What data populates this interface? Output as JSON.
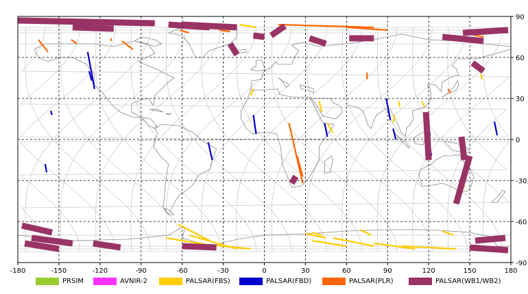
{
  "chart_data": {
    "type": "map",
    "title": "",
    "xlim": [
      -180,
      180
    ],
    "ylim": [
      -90,
      90
    ],
    "x_ticks": [
      -180,
      -150,
      -120,
      -90,
      -60,
      -30,
      0,
      30,
      60,
      90,
      120,
      150,
      180
    ],
    "y_ticks": [
      90,
      60,
      30,
      0,
      -30,
      -60,
      -90
    ],
    "x_tick_labels": [
      "-180",
      "-150",
      "-120",
      "-90",
      "-60",
      "-30",
      "0",
      "30",
      "60",
      "90",
      "120",
      "150",
      "180"
    ],
    "y_tick_labels": [
      "90",
      "60",
      "30",
      "0",
      "-30",
      "-60",
      "-90"
    ],
    "grid": true,
    "legend_placement": "bottom",
    "series": [
      {
        "name": "PRSIM",
        "color": "#99cc33",
        "segments": []
      },
      {
        "name": "AVNIR-2",
        "color": "#ff33ff",
        "segments": []
      },
      {
        "name": "PALSAR(FBS)",
        "color": "#ffcc00",
        "segments": [
          [
            [
              -60,
              84
            ],
            [
              -48,
              82
            ]
          ],
          [
            [
              -18,
              84
            ],
            [
              -6,
              82
            ]
          ],
          [
            [
              -10,
              32
            ],
            [
              -8,
              37
            ]
          ],
          [
            [
              40,
              28
            ],
            [
              42,
              20
            ]
          ],
          [
            [
              46,
              12
            ],
            [
              50,
              5
            ]
          ],
          [
            [
              98,
              28
            ],
            [
              99,
              24
            ]
          ],
          [
            [
              95,
              18
            ],
            [
              94,
              12
            ]
          ],
          [
            [
              115,
              28
            ],
            [
              117,
              24
            ]
          ],
          [
            [
              145,
              -31
            ],
            [
              146,
              -35
            ]
          ],
          [
            [
              158,
              48
            ],
            [
              159,
              44
            ]
          ],
          [
            [
              -63,
              -62
            ],
            [
              -40,
              -74
            ]
          ],
          [
            [
              -72,
              -72
            ],
            [
              -35,
              -78
            ]
          ],
          [
            [
              -55,
              -70
            ],
            [
              -20,
              -80
            ]
          ],
          [
            [
              -40,
              -77
            ],
            [
              -10,
              -80
            ]
          ],
          [
            [
              30,
              -69
            ],
            [
              45,
              -72
            ]
          ],
          [
            [
              35,
              -74
            ],
            [
              60,
              -78
            ]
          ],
          [
            [
              50,
              -72
            ],
            [
              80,
              -78
            ]
          ],
          [
            [
              70,
              -66
            ],
            [
              78,
              -70
            ]
          ],
          [
            [
              80,
              -76
            ],
            [
              110,
              -80
            ]
          ],
          [
            [
              100,
              -78
            ],
            [
              140,
              -80
            ]
          ],
          [
            [
              130,
              -67
            ],
            [
              138,
              -70
            ]
          ],
          [
            [
              35,
              -68
            ],
            [
              42,
              -70
            ]
          ]
        ]
      },
      {
        "name": "PALSAR(FBD)",
        "color": "#0000cc",
        "segments": [
          [
            [
              -129,
              64
            ],
            [
              -124,
              37
            ]
          ],
          [
            [
              -128,
              50
            ],
            [
              -126,
              43
            ]
          ],
          [
            [
              -156,
              21
            ],
            [
              -155,
              18
            ]
          ],
          [
            [
              -160,
              -18
            ],
            [
              -159,
              -24
            ]
          ],
          [
            [
              -8,
              18
            ],
            [
              -6,
              4
            ]
          ],
          [
            [
              -41,
              -2
            ],
            [
              -38,
              -15
            ]
          ],
          [
            [
              44,
              12
            ],
            [
              46,
              2
            ]
          ],
          [
            [
              89,
              30
            ],
            [
              92,
              14
            ]
          ],
          [
            [
              94,
              8
            ],
            [
              96,
              0
            ]
          ],
          [
            [
              117,
              16
            ],
            [
              122,
              -12
            ]
          ],
          [
            [
              120,
              10
            ],
            [
              121,
              3
            ]
          ],
          [
            [
              168,
              13
            ],
            [
              170,
              3
            ]
          ]
        ]
      },
      {
        "name": "PALSAR(PLR)",
        "color": "#ff6600",
        "segments": [
          [
            [
              -165,
              73
            ],
            [
              -158,
              64
            ]
          ],
          [
            [
              -141,
              73
            ],
            [
              -137,
              70
            ]
          ],
          [
            [
              -112,
              74
            ],
            [
              -112,
              72
            ]
          ],
          [
            [
              -104,
              72
            ],
            [
              -96,
              66
            ]
          ],
          [
            [
              -62,
              80
            ],
            [
              -55,
              78
            ]
          ],
          [
            [
              10,
              84
            ],
            [
              80,
              82
            ]
          ],
          [
            [
              60,
              82
            ],
            [
              90,
              80
            ]
          ],
          [
            [
              -33,
              80
            ],
            [
              -25,
              79
            ]
          ],
          [
            [
              18,
              12
            ],
            [
              28,
              -32
            ]
          ],
          [
            [
              24,
              -12
            ],
            [
              28,
              -27
            ]
          ],
          [
            [
              75,
              49
            ],
            [
              75,
              44
            ]
          ],
          [
            [
              134,
              37
            ],
            [
              136,
              34
            ]
          ],
          [
            [
              150,
              77
            ],
            [
              160,
              75
            ]
          ]
        ]
      },
      {
        "name": "PALSAR(WB1/WB2)",
        "color": "#993366",
        "segments": [
          [
            [
              -180,
              87
            ],
            [
              -80,
              85
            ]
          ],
          [
            [
              -140,
              82
            ],
            [
              -110,
              81
            ]
          ],
          [
            [
              -70,
              84
            ],
            [
              -40,
              82
            ]
          ],
          [
            [
              -60,
              84
            ],
            [
              -20,
              82
            ]
          ],
          [
            [
              -25,
              70
            ],
            [
              -20,
              62
            ]
          ],
          [
            [
              15,
              83
            ],
            [
              5,
              76
            ]
          ],
          [
            [
              -8,
              76
            ],
            [
              0,
              75
            ]
          ],
          [
            [
              33,
              74
            ],
            [
              45,
              70
            ]
          ],
          [
            [
              62,
              74
            ],
            [
              80,
              74
            ]
          ],
          [
            [
              130,
              75
            ],
            [
              160,
              72
            ]
          ],
          [
            [
              145,
              78
            ],
            [
              178,
              80
            ]
          ],
          [
            [
              152,
              56
            ],
            [
              160,
              50
            ]
          ],
          [
            [
              118,
              20
            ],
            [
              120,
              -15
            ]
          ],
          [
            [
              144,
              2
            ],
            [
              146,
              -15
            ]
          ],
          [
            [
              150,
              -12
            ],
            [
              140,
              -47
            ]
          ],
          [
            [
              -177,
              -63
            ],
            [
              -155,
              -68
            ]
          ],
          [
            [
              -170,
              -72
            ],
            [
              -140,
              -76
            ]
          ],
          [
            [
              -175,
              -76
            ],
            [
              -150,
              -80
            ]
          ],
          [
            [
              -125,
              -76
            ],
            [
              -105,
              -79
            ]
          ],
          [
            [
              154,
              -74
            ],
            [
              176,
              -72
            ]
          ],
          [
            [
              150,
              -79
            ],
            [
              178,
              -81
            ]
          ],
          [
            [
              -60,
              -78
            ],
            [
              -35,
              -79
            ]
          ],
          [
            [
              23,
              -27
            ],
            [
              20,
              -32
            ]
          ]
        ]
      }
    ]
  },
  "legend": {
    "items": [
      {
        "label": "PRSIM",
        "color": "#99cc33"
      },
      {
        "label": "AVNIR-2",
        "color": "#ff33ff"
      },
      {
        "label": "PALSAR(FBS)",
        "color": "#ffcc00"
      },
      {
        "label": "PALSAR(FBD)",
        "color": "#0000cc"
      },
      {
        "label": "PALSAR(PLR)",
        "color": "#ff6600"
      },
      {
        "label": "PALSAR(WB1/WB2)",
        "color": "#993366"
      }
    ]
  }
}
